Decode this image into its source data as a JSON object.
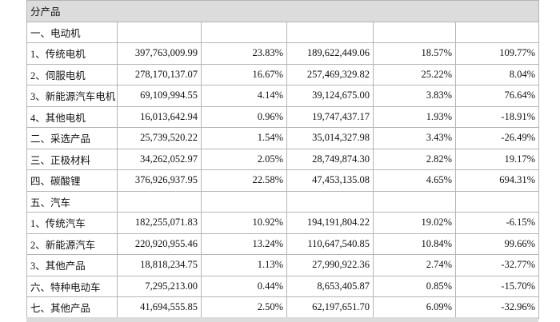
{
  "table": {
    "header": "分产品",
    "rows": [
      [
        "一、电动机"
      ],
      [
        "1、传统电机",
        "397,763,009.99",
        "23.83%",
        "189,622,449.06",
        "18.57%",
        "109.77%"
      ],
      [
        "2、伺服电机",
        "278,170,137.07",
        "16.67%",
        "257,469,329.82",
        "25.22%",
        "8.04%"
      ],
      [
        "3、新能源汽车电机",
        "69,109,994.55",
        "4.14%",
        "39,124,675.00",
        "3.83%",
        "76.64%"
      ],
      [
        "4、其他电机",
        "16,013,642.94",
        "0.96%",
        "19,747,437.17",
        "1.93%",
        "-18.91%"
      ],
      [
        "二、采选产品",
        "25,739,520.22",
        "1.54%",
        "35,014,327.98",
        "3.43%",
        "-26.49%"
      ],
      [
        "三、正极材料",
        "34,262,052.97",
        "2.05%",
        "28,749,874.30",
        "2.82%",
        "19.17%"
      ],
      [
        "四、碳酸锂",
        "376,926,937.95",
        "22.58%",
        "47,453,135.08",
        "4.65%",
        "694.31%"
      ],
      [
        "五、汽车"
      ],
      [
        "1、传统汽车",
        "182,255,071.83",
        "10.92%",
        "194,191,804.22",
        "19.02%",
        "-6.15%"
      ],
      [
        "2、新能源汽车",
        "220,920,955.46",
        "13.24%",
        "110,647,540.85",
        "10.84%",
        "99.66%"
      ],
      [
        "3、其他产品",
        "18,818,234.75",
        "1.13%",
        "27,990,922.36",
        "2.74%",
        "-32.77%"
      ],
      [
        "六、特种电动车",
        "7,295,213.00",
        "0.44%",
        "8,653,405.87",
        "0.85%",
        "-15.70%"
      ],
      [
        "七、其他产品",
        "41,694,555.85",
        "2.50%",
        "62,197,651.70",
        "6.09%",
        "-32.96%"
      ]
    ]
  }
}
